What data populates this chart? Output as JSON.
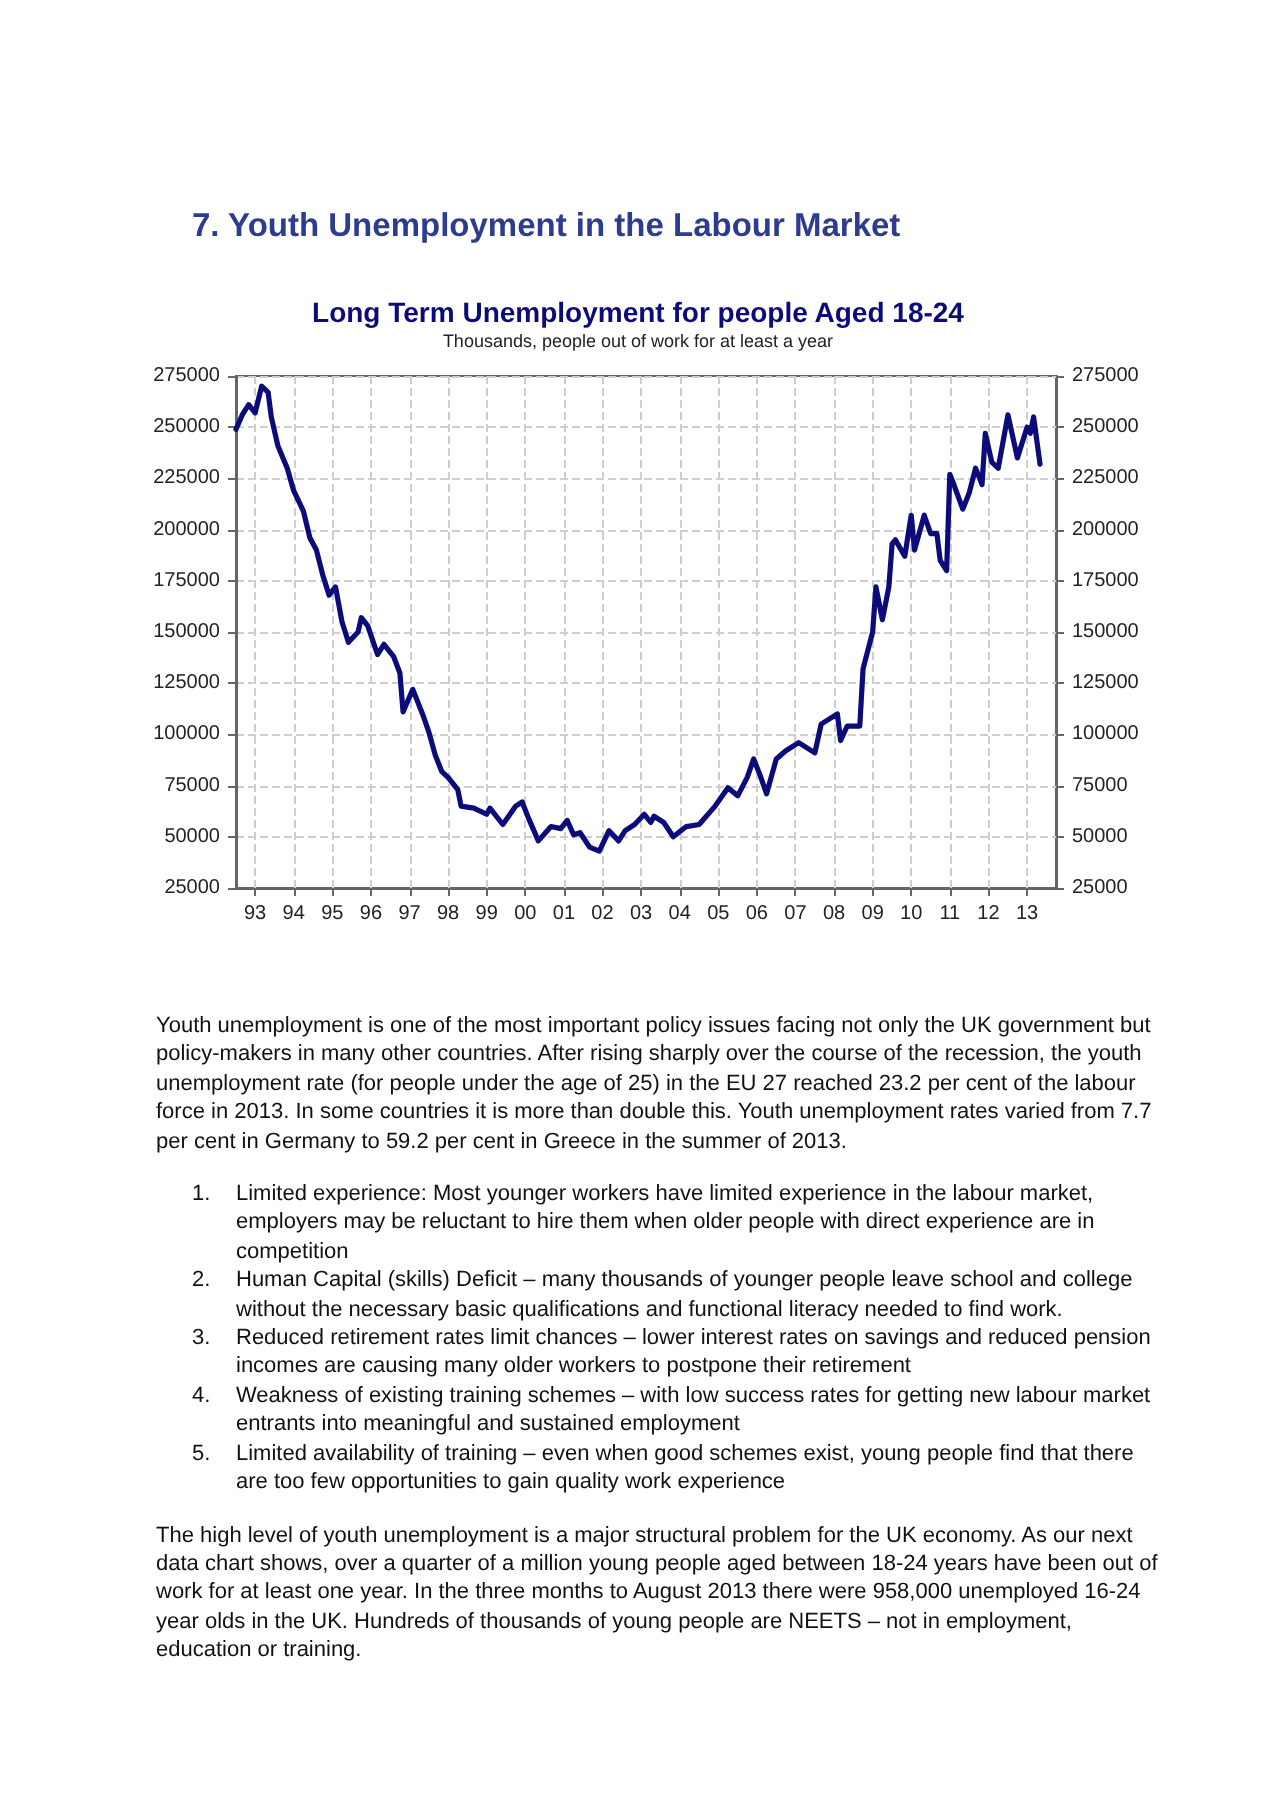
{
  "chart_data": {
    "type": "line",
    "title": "Long Term Unemployment for people Aged 18-24",
    "subtitle": "Thousands, people out of work for at least a year",
    "annotations": [
      "7. Youth Unemployment in the Labour Market",
      "Youth unemployment is one of the most important policy issues facing not only the UK government but policy-makers in many other countries.  After rising sharply over the course of the recession, the youth unemployment rate (for people under the age of 25) in the EU 27 reached 23.2 per cent of the labour force in 2013. In some countries it is more than double this. Youth unemployment rates varied from 7.7 per cent in Germany to 59.2 per cent in Greece in the summer of 2013.",
      "1. Limited experience: Most younger workers have limited experience in the labour market, employers may be reluctant to hire them when older people with direct experience are in competition",
      "2. Human Capital (skills) Deficit – many thousands of younger people leave school and college without the necessary basic qualifications and functional literacy needed to find work.",
      "3. Reduced retirement rates limit chances – lower interest rates on savings and reduced pension incomes are causing many older workers to postpone their retirement",
      "4. Weakness of existing training schemes – with low success rates for getting new labour market entrants into meaningful and sustained employment",
      "5. Limited availability of training – even when good schemes exist, young people find that there are too few opportunities to gain quality work experience",
      "The high level of youth unemployment is a major structural problem for the UK economy. As our next data chart shows, over a quarter of a million young people aged between 18-24 years have been out of work for at least one year. In the three months to August 2013 there were 958,000 unemployed 16-24 year olds in the UK. Hundreds of thousands of young people are NEETS – not in employment, education or training."
    ],
    "x": [
      "1993-01",
      "1993-03",
      "1993-05",
      "1993-07",
      "1993-09",
      "1993-11",
      "1993-12",
      "1994-02",
      "1994-05",
      "1994-07",
      "1994-10",
      "1994-12",
      "1995-02",
      "1995-04",
      "1995-06",
      "1995-08",
      "1995-10",
      "1995-12",
      "1996-03",
      "1996-04",
      "1996-06",
      "1996-09",
      "1996-11",
      "1997-02",
      "1997-04",
      "1997-05",
      "1997-08",
      "1997-11",
      "1998-01",
      "1998-03",
      "1998-05",
      "1998-07",
      "1998-10",
      "1998-11",
      "1999-03",
      "1999-07",
      "1999-08",
      "1999-12",
      "2000-04",
      "2000-06",
      "2000-08",
      "2000-11",
      "2001-03",
      "2001-06",
      "2001-08",
      "2001-10",
      "2001-12",
      "2002-03",
      "2002-06",
      "2002-09",
      "2002-12",
      "2003-02",
      "2003-05",
      "2003-08",
      "2003-10",
      "2003-11",
      "2004-02",
      "2004-05",
      "2004-09",
      "2005-01",
      "2005-06",
      "2005-10",
      "2006-01",
      "2006-04",
      "2006-06",
      "2006-08",
      "2006-10",
      "2007-01",
      "2007-04",
      "2007-08",
      "2008-01",
      "2008-03",
      "2008-08",
      "2008-09",
      "2008-11",
      "2009-01",
      "2009-03",
      "2009-04",
      "2009-07",
      "2009-08",
      "2009-10",
      "2009-12",
      "2010-01",
      "2010-02",
      "2010-05",
      "2010-07",
      "2010-08",
      "2010-11",
      "2011-01",
      "2011-03",
      "2011-04",
      "2011-06",
      "2011-07",
      "2011-08",
      "2011-11",
      "2012-01",
      "2012-03",
      "2012-05",
      "2012-06",
      "2012-08",
      "2012-10",
      "2013-01",
      "2013-04",
      "2013-07",
      "2013-08",
      "2013-09",
      "2013-11"
    ],
    "values": [
      249000,
      256000,
      261000,
      257000,
      270000,
      267000,
      255000,
      241000,
      230000,
      219000,
      209000,
      196000,
      190000,
      178000,
      168000,
      172000,
      155000,
      145000,
      150000,
      157000,
      153000,
      139000,
      144000,
      138000,
      130000,
      111000,
      122000,
      110000,
      101000,
      90000,
      82000,
      79000,
      73000,
      65000,
      64000,
      61000,
      64000,
      56000,
      65000,
      67000,
      59000,
      48000,
      55000,
      54000,
      58000,
      51000,
      52000,
      45000,
      43000,
      53000,
      48000,
      53000,
      56000,
      61000,
      57000,
      60000,
      57000,
      50000,
      55000,
      56000,
      65000,
      74000,
      70000,
      79000,
      88000,
      80000,
      71000,
      88000,
      92000,
      96000,
      91000,
      105000,
      110000,
      97000,
      104000,
      104000,
      104000,
      132000,
      150000,
      172000,
      156000,
      172000,
      193000,
      195000,
      187000,
      207000,
      190000,
      207000,
      198000,
      198000,
      185000,
      180000,
      227000,
      223000,
      210000,
      218000,
      230000,
      222000,
      247000,
      233000,
      230000,
      256000,
      235000,
      250000,
      247000,
      255000,
      232000
    ],
    "color": "#0b0b7a",
    "line_style": "solid",
    "marker": "none",
    "grid": true,
    "xlim": [
      "1993-01",
      "2014-04"
    ],
    "xticks": [
      {
        "value": "1993-07",
        "label": "93"
      },
      {
        "value": "1994-07",
        "label": "94"
      },
      {
        "value": "1995-07",
        "label": "95"
      },
      {
        "value": "1996-07",
        "label": "96"
      },
      {
        "value": "1997-07",
        "label": "97"
      },
      {
        "value": "1998-07",
        "label": "98"
      },
      {
        "value": "1999-07",
        "label": "99"
      },
      {
        "value": "2000-07",
        "label": "00"
      },
      {
        "value": "2001-07",
        "label": "01"
      },
      {
        "value": "2002-07",
        "label": "02"
      },
      {
        "value": "2003-07",
        "label": "03"
      },
      {
        "value": "2004-07",
        "label": "04"
      },
      {
        "value": "2005-07",
        "label": "05"
      },
      {
        "value": "2006-07",
        "label": "06"
      },
      {
        "value": "2007-07",
        "label": "07"
      },
      {
        "value": "2008-07",
        "label": "08"
      },
      {
        "value": "2009-07",
        "label": "09"
      },
      {
        "value": "2010-07",
        "label": "10"
      },
      {
        "value": "2011-07",
        "label": "11"
      },
      {
        "value": "2012-07",
        "label": "12"
      },
      {
        "value": "2013-07",
        "label": "13"
      }
    ],
    "ylim": [
      25000,
      275000
    ],
    "yticks": [
      25000,
      50000,
      75000,
      100000,
      125000,
      150000,
      175000,
      200000,
      225000,
      250000,
      275000
    ],
    "y2lim": [
      25000,
      275000
    ],
    "y2ticks": [
      25000,
      50000,
      75000,
      100000,
      125000,
      150000,
      175000,
      200000,
      225000,
      250000,
      275000
    ]
  }
}
